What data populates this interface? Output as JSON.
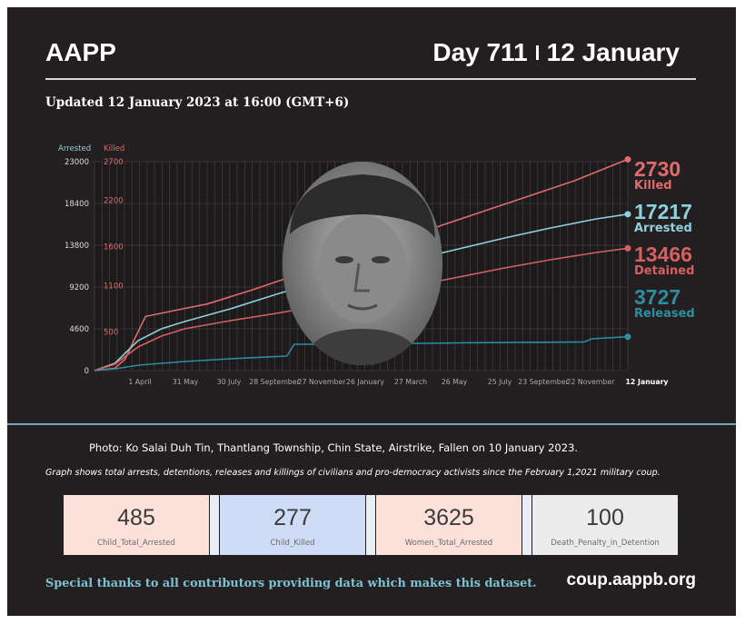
{
  "header": {
    "brand": "AAPP",
    "day": "Day 711",
    "date": "12 January",
    "updated": "Updated 12 January 2023 at 16:00 (GMT+6)"
  },
  "colors": {
    "killed": "#e06b6b",
    "arrested": "#8fd0df",
    "detained": "#d85f5f",
    "released": "#2d8da1",
    "background": "#231f20"
  },
  "chart_data": {
    "type": "line",
    "left_axis": {
      "label": "Arrested",
      "ticks": [
        "23000",
        "18400",
        "13800",
        "9200",
        "4600",
        "0"
      ],
      "range": [
        0,
        23000
      ]
    },
    "right_axis": {
      "label": "Killed",
      "ticks": [
        "2700",
        "2200",
        "1600",
        "1100",
        "500"
      ],
      "range": [
        0,
        2700
      ]
    },
    "x_labels": [
      "1 April",
      "31 May",
      "30 July",
      "28 September",
      "27 November",
      "26 January",
      "27 March",
      "26 May",
      "25 July",
      "23 September",
      "22 November",
      "12 January"
    ],
    "x_range": [
      "2021-02-01",
      "2023-01-12"
    ],
    "grid": true,
    "series": [
      {
        "name": "Killed",
        "axis": "right",
        "color_key": "killed",
        "final": "2730",
        "points": [
          [
            "2021-02-01",
            0
          ],
          [
            "2021-02-28",
            30
          ],
          [
            "2021-03-14",
            150
          ],
          [
            "2021-03-27",
            420
          ],
          [
            "2021-04-10",
            700
          ],
          [
            "2021-05-20",
            780
          ],
          [
            "2021-07-01",
            860
          ],
          [
            "2021-09-01",
            1050
          ],
          [
            "2021-11-01",
            1250
          ],
          [
            "2022-01-01",
            1450
          ],
          [
            "2022-03-01",
            1650
          ],
          [
            "2022-05-01",
            1850
          ],
          [
            "2022-07-01",
            2050
          ],
          [
            "2022-09-01",
            2250
          ],
          [
            "2022-11-01",
            2450
          ],
          [
            "2023-01-12",
            2730
          ]
        ]
      },
      {
        "name": "Arrested",
        "axis": "left",
        "color_key": "arrested",
        "final": "17217",
        "points": [
          [
            "2021-02-01",
            0
          ],
          [
            "2021-02-28",
            800
          ],
          [
            "2021-03-31",
            3300
          ],
          [
            "2021-05-01",
            4600
          ],
          [
            "2021-06-01",
            5400
          ],
          [
            "2021-08-01",
            6800
          ],
          [
            "2021-10-01",
            8400
          ],
          [
            "2021-12-01",
            9900
          ],
          [
            "2022-02-01",
            11200
          ],
          [
            "2022-04-01",
            12200
          ],
          [
            "2022-06-01",
            13400
          ],
          [
            "2022-08-01",
            14600
          ],
          [
            "2022-10-01",
            15700
          ],
          [
            "2022-12-01",
            16700
          ],
          [
            "2023-01-12",
            17217
          ]
        ]
      },
      {
        "name": "Detained",
        "axis": "left",
        "color_key": "detained",
        "final": "13466",
        "points": [
          [
            "2021-02-01",
            0
          ],
          [
            "2021-02-28",
            700
          ],
          [
            "2021-03-31",
            2600
          ],
          [
            "2021-05-01",
            3800
          ],
          [
            "2021-06-01",
            4600
          ],
          [
            "2021-08-01",
            5500
          ],
          [
            "2021-10-01",
            6300
          ],
          [
            "2021-12-01",
            7200
          ],
          [
            "2022-02-01",
            8300
          ],
          [
            "2022-04-01",
            9300
          ],
          [
            "2022-06-01",
            10300
          ],
          [
            "2022-08-01",
            11300
          ],
          [
            "2022-10-01",
            12200
          ],
          [
            "2022-12-01",
            13000
          ],
          [
            "2023-01-12",
            13466
          ]
        ]
      },
      {
        "name": "Released",
        "axis": "left",
        "color_key": "released",
        "final": "3727",
        "points": [
          [
            "2021-02-01",
            0
          ],
          [
            "2021-03-01",
            200
          ],
          [
            "2021-04-01",
            600
          ],
          [
            "2021-06-01",
            1000
          ],
          [
            "2021-08-01",
            1300
          ],
          [
            "2021-10-15",
            1600
          ],
          [
            "2021-10-25",
            2900
          ],
          [
            "2022-01-01",
            2900
          ],
          [
            "2022-06-01",
            3050
          ],
          [
            "2022-11-15",
            3150
          ],
          [
            "2022-11-25",
            3500
          ],
          [
            "2023-01-12",
            3727
          ]
        ]
      }
    ]
  },
  "callouts": {
    "killed": {
      "value": "2730",
      "label": "Killed"
    },
    "arrested": {
      "value": "17217",
      "label": "Arrested"
    },
    "detained": {
      "value": "13466",
      "label": "Detained"
    },
    "released": {
      "value": "3727",
      "label": "Released"
    }
  },
  "caption": "Photo:  Ko Salai Duh Tin, Thantlang Township, Chin State, Airstrike, Fallen on 10 January 2023.",
  "graph_note": "Graph shows total arrests, detentions, releases and killings of civilians and pro-democracy activists since the February 1,2021 military coup.",
  "stats": [
    {
      "value": "485",
      "label": "Child_Total_Arrested",
      "bg": "#fbe1da"
    },
    {
      "value": "277",
      "label": "Child_Killed",
      "bg": "#cfdcf6"
    },
    {
      "value": "3625",
      "label": "Women_Total_Arrested",
      "bg": "#fbe1da"
    },
    {
      "value": "100",
      "label": "Death_Penalty_in_Detention",
      "bg": "#ececec"
    }
  ],
  "footer": {
    "thanks": "Special thanks to all contributors providing data which makes this dataset.",
    "url": "coup.aappb.org"
  }
}
